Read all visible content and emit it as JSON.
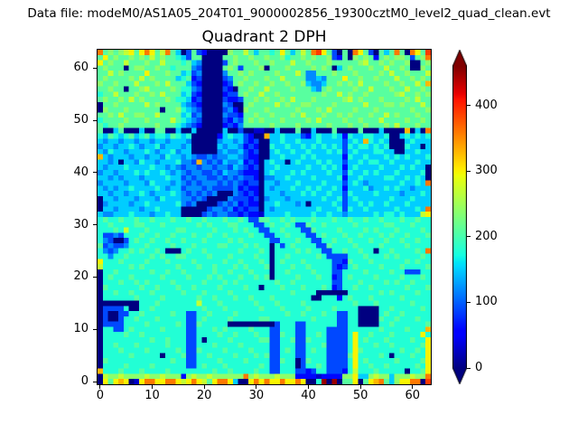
{
  "header": {
    "data_file_label": "Data file: modeM0/AS1A05_204T01_9000002856_19300cztM0_level2_quad_clean.evt"
  },
  "chart_data": {
    "type": "heatmap",
    "title": "Quadrant 2 DPH",
    "suptitle": "Data file: modeM0/AS1A05_204T01_9000002856_19300cztM0_level2_quad_clean.evt",
    "colormap": "jet",
    "vmin": 0,
    "vmax": 460,
    "x_range": [
      -0.5,
      63.5
    ],
    "y_range": [
      -0.5,
      63.5
    ],
    "x_ticks": [
      0,
      10,
      20,
      30,
      40,
      50,
      60
    ],
    "y_ticks": [
      0,
      10,
      20,
      30,
      40,
      50,
      60
    ],
    "grid_size": [
      64,
      64
    ],
    "value_scale": 30,
    "value_encoding": "each character is a hex digit 0-f; cell value (DPH counts) = digit * 30; rows listed top (y=63) to bottom (y=0), chars left (x=0) to right (x=63)",
    "colorbar": {
      "ticks": [
        0,
        100,
        200,
        300,
        400
      ],
      "extend": "both",
      "under_color": "#000080",
      "over_color": "#800000"
    },
    "rows_top_to_bottom": [
      "c78789a7aca79c750373200008779757767a75797cda73070ca730757c70ca7d",
      "7a7877878797877653770000778778778778677878778327087872787887378c",
      "a787797778779777675400003787778778777977877787777789778787780078",
      "7877707887787767774300007873777807778777787870578777877977870087",
      "779787777a777877563400004778787777877797447778777877778797787779",
      "7877778797877775672300003477877787797777445477 7a7787787779778787",
      "877877797778797775320000237877877877877854457787879777787787797b",
      "7787707789777787664300003207787797777877754787777877977787797787",
      "6779777877879777563200002337877977877777777877978778777778977878",
      "7877879787777876652300003223778787787977787777789787778777787977",
      "0778777779787777543200004300787777978778877778777779777887877797",
      "0877787777770778654300003420877787777787778797777877787777778778",
      "7787977887797777563400004332778778777879777877878777877978777877",
      "6777787778777797654300003243787877787777879777787787779777787787",
      "7677877777787776543200002324777778777787777787778778777879777877",
      "70057000500770050050000050030011005000700500070000700050000b050c",
      "6576567567566576560000025655320 0b5565553256556526556655600565656",
      "5455455455455455540000045545323005565565556555535 65b656500056555",
      "4554556545564555450000054554232006556556565656536566565600065505",
      "5465545556545564550000045445323005655655655565635655566550055655",
      "b545554554554655454334344554322005565556565555526556555656565556",
      "55450554655455564 43b43435445232056550565556565535565665565555655",
      "5455565555655454344344344354323055655555655656525655556555656550",
      "4554555656556545434433435443222056555656555565536556565556555560",
      "5545455545555655343443343434332044556555565555625565555665565650",
      "45555455546555454343444343432330554555655556555356545555556556 5c",
      "5454556555565455344434333342322054555655656556525556455656554555",
      "5545545565455565434343400043232055545556565565536555565555455565",
      "0554555455546555443430000433323045554555555655635655555565556555",
      "0455554556555556434000034342322055655545055556535565655655565555",
      "05545555455655550000034434232330545555555565556365565555565556 5c",
      "544555655545565500003434433232215555655556556554555556566565559a",
      "6766766766766676676676667667633776676766676667667667667666766766",
      "6676666776667666666767666776663367667633766766666766666776667666",
      "6667696667666667766666766676766336676663376666766667676667666676",
      "6334366676676676667667667666676633667666336766676676667676676667",
      "6430036766766766766676666767666663366676633667667666766766766766",
      "7343346667666676667666677666767660636766663376666766667666676666",
      "64346676766760006766766666676667606666767663366766766066766667 6c",
      "6646676666767667766667666766667660667666667633336667666767666676",
      "a66676666766676666766666766766676067666766666332766676666667676 6",
      "9666667676666667666766766676766670666766766663236766667666766667",
      "0667666666766766766666766766676660667666676663366667666676633366",
      "0676667666667666676667676667667670666676667662367666676666766676",
      "0666766767666676666676667676666666766766666663366676666767667666",
      "0766666676676667667666676666766066676667666762366766766666676667",
      "0667667666766666766676666766666666666766660000006666667676666766",
      "0666666766667666666766766676676667666666600666267666766666766666",
      "0000000066676666666966676666667666766667666666666766676666667666",
      "0333360066766666666676667666666766676666766667666600006676666676",
      "0300336676666676633667666676666666667667666766336600006766766666",
      "0300366766676666633676666766666776666666676666336600007667666766",
      "0333366667666667633766666000000000366633666666336600006676666667",
      "06633676666676666336667676666766633666336666333366666676666766 6b",
      "06666766766666666336666766766676633766336676333 36a66766676666 6a",
      "066666666676676663360666676666677336673376663333 6a6766676666766a",
      "06676667666667666336667666676666633666336667333 36a66676676666 67a",
      "0666766667666667633766667666676663367633676633336a766666667667 6a",
      "066666766666066673366766667666767336663366663333 7a6666760666766a",
      "07666666666666766336666766667666633766037666333 36a6766666766667a",
      "066667666676666663367666766666676336660366763333 6a6676676666676a",
      "b66676667666676666666676676666766336663323663332696667666660667a",
      "09889888898898882898898888 88c89888988822221222288a5589885888988c",
      "0a7aba01accaacca9aca97acca500acacaacaaca006f0f077a07abc758aacc0d"
    ]
  }
}
